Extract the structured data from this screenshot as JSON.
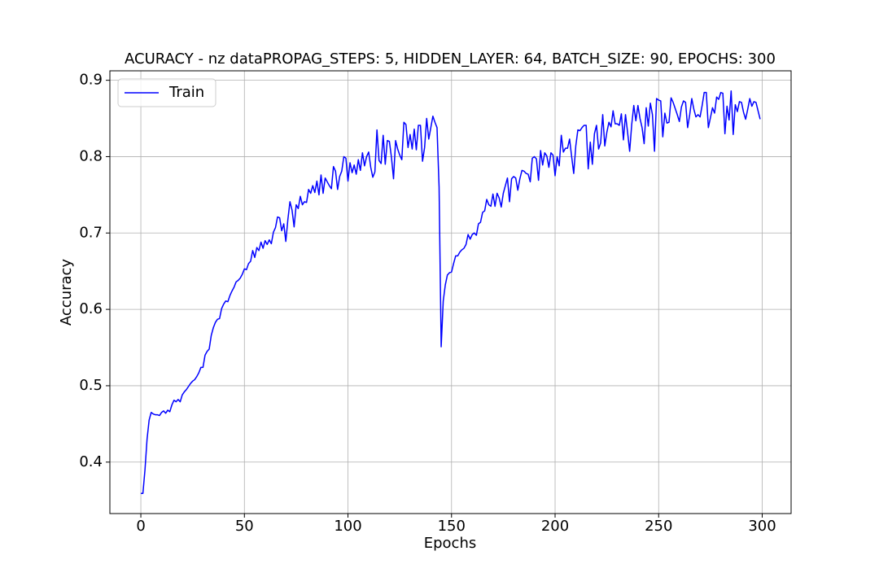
{
  "chart_data": {
    "type": "line",
    "title": "ACURACY - nz dataPROPAG_STEPS: 5, HIDDEN_LAYER: 64, BATCH_SIZE: 90, EPOCHS: 300",
    "xlabel": "Epochs",
    "ylabel": "Accuracy",
    "x": [
      0,
      1,
      2,
      3,
      4,
      5,
      6,
      7,
      8,
      9,
      10,
      11,
      12,
      13,
      14,
      15,
      16,
      17,
      18,
      19,
      20,
      21,
      22,
      23,
      24,
      25,
      26,
      27,
      28,
      29,
      30,
      31,
      32,
      33,
      34,
      35,
      36,
      37,
      38,
      39,
      40,
      41,
      42,
      43,
      44,
      45,
      46,
      47,
      48,
      49,
      50,
      51,
      52,
      53,
      54,
      55,
      56,
      57,
      58,
      59,
      60,
      61,
      62,
      63,
      64,
      65,
      66,
      67,
      68,
      69,
      70,
      71,
      72,
      73,
      74,
      75,
      76,
      77,
      78,
      79,
      80,
      81,
      82,
      83,
      84,
      85,
      86,
      87,
      88,
      89,
      90,
      91,
      92,
      93,
      94,
      95,
      96,
      97,
      98,
      99,
      100,
      101,
      102,
      103,
      104,
      105,
      106,
      107,
      108,
      109,
      110,
      111,
      112,
      113,
      114,
      115,
      116,
      117,
      118,
      119,
      120,
      121,
      122,
      123,
      124,
      125,
      126,
      127,
      128,
      129,
      130,
      131,
      132,
      133,
      134,
      135,
      136,
      137,
      138,
      139,
      140,
      141,
      142,
      143,
      144,
      145,
      146,
      147,
      148,
      149,
      150,
      151,
      152,
      153,
      154,
      155,
      156,
      157,
      158,
      159,
      160,
      161,
      162,
      163,
      164,
      165,
      166,
      167,
      168,
      169,
      170,
      171,
      172,
      173,
      174,
      175,
      176,
      177,
      178,
      179,
      180,
      181,
      182,
      183,
      184,
      185,
      186,
      187,
      188,
      189,
      190,
      191,
      192,
      193,
      194,
      195,
      196,
      197,
      198,
      199,
      200,
      201,
      202,
      203,
      204,
      205,
      206,
      207,
      208,
      209,
      210,
      211,
      212,
      213,
      214,
      215,
      216,
      217,
      218,
      219,
      220,
      221,
      222,
      223,
      224,
      225,
      226,
      227,
      228,
      229,
      230,
      231,
      232,
      233,
      234,
      235,
      236,
      237,
      238,
      239,
      240,
      241,
      242,
      243,
      244,
      245,
      246,
      247,
      248,
      249,
      250,
      251,
      252,
      253,
      254,
      255,
      256,
      257,
      258,
      259,
      260,
      261,
      262,
      263,
      264,
      265,
      266,
      267,
      268,
      269,
      270,
      271,
      272,
      273,
      274,
      275,
      276,
      277,
      278,
      279,
      280,
      281,
      282,
      283,
      284,
      285,
      286,
      287,
      288,
      289,
      290,
      291,
      292,
      293,
      294,
      295,
      296,
      297,
      298,
      299
    ],
    "series": [
      {
        "name": "Train",
        "color": "#0000ff",
        "values": [
          0.359,
          0.359,
          0.39,
          0.43,
          0.455,
          0.465,
          0.463,
          0.462,
          0.462,
          0.461,
          0.465,
          0.467,
          0.464,
          0.468,
          0.466,
          0.475,
          0.481,
          0.479,
          0.482,
          0.479,
          0.488,
          0.492,
          0.495,
          0.499,
          0.503,
          0.506,
          0.508,
          0.512,
          0.517,
          0.524,
          0.524,
          0.54,
          0.545,
          0.548,
          0.566,
          0.576,
          0.583,
          0.587,
          0.588,
          0.601,
          0.607,
          0.611,
          0.61,
          0.618,
          0.624,
          0.629,
          0.636,
          0.638,
          0.641,
          0.646,
          0.653,
          0.652,
          0.66,
          0.663,
          0.677,
          0.668,
          0.681,
          0.677,
          0.688,
          0.68,
          0.69,
          0.685,
          0.691,
          0.686,
          0.701,
          0.707,
          0.721,
          0.72,
          0.703,
          0.712,
          0.689,
          0.718,
          0.741,
          0.73,
          0.708,
          0.737,
          0.732,
          0.748,
          0.737,
          0.741,
          0.74,
          0.757,
          0.752,
          0.762,
          0.753,
          0.768,
          0.75,
          0.776,
          0.752,
          0.772,
          0.767,
          0.762,
          0.758,
          0.787,
          0.781,
          0.757,
          0.774,
          0.781,
          0.8,
          0.798,
          0.768,
          0.792,
          0.779,
          0.789,
          0.777,
          0.796,
          0.782,
          0.805,
          0.788,
          0.8,
          0.806,
          0.786,
          0.773,
          0.78,
          0.835,
          0.795,
          0.791,
          0.828,
          0.79,
          0.821,
          0.82,
          0.799,
          0.771,
          0.821,
          0.81,
          0.802,
          0.796,
          0.845,
          0.842,
          0.812,
          0.829,
          0.81,
          0.836,
          0.809,
          0.841,
          0.841,
          0.794,
          0.812,
          0.85,
          0.823,
          0.838,
          0.853,
          0.845,
          0.838,
          0.76,
          0.551,
          0.611,
          0.632,
          0.645,
          0.648,
          0.649,
          0.66,
          0.67,
          0.67,
          0.675,
          0.678,
          0.68,
          0.685,
          0.698,
          0.692,
          0.698,
          0.7,
          0.697,
          0.712,
          0.714,
          0.727,
          0.729,
          0.744,
          0.737,
          0.735,
          0.751,
          0.735,
          0.752,
          0.746,
          0.734,
          0.752,
          0.762,
          0.772,
          0.741,
          0.771,
          0.774,
          0.772,
          0.756,
          0.771,
          0.782,
          0.781,
          0.778,
          0.777,
          0.767,
          0.798,
          0.8,
          0.797,
          0.769,
          0.808,
          0.789,
          0.805,
          0.801,
          0.786,
          0.805,
          0.802,
          0.775,
          0.8,
          0.788,
          0.828,
          0.806,
          0.811,
          0.811,
          0.823,
          0.8,
          0.778,
          0.814,
          0.835,
          0.834,
          0.838,
          0.841,
          0.841,
          0.784,
          0.819,
          0.79,
          0.83,
          0.841,
          0.81,
          0.818,
          0.855,
          0.814,
          0.832,
          0.845,
          0.839,
          0.86,
          0.843,
          0.843,
          0.841,
          0.856,
          0.822,
          0.855,
          0.832,
          0.807,
          0.842,
          0.867,
          0.847,
          0.867,
          0.85,
          0.838,
          0.817,
          0.864,
          0.84,
          0.87,
          0.855,
          0.807,
          0.876,
          0.874,
          0.873,
          0.826,
          0.857,
          0.844,
          0.845,
          0.877,
          0.871,
          0.863,
          0.855,
          0.846,
          0.865,
          0.873,
          0.871,
          0.838,
          0.855,
          0.876,
          0.862,
          0.852,
          0.855,
          0.852,
          0.867,
          0.884,
          0.884,
          0.838,
          0.851,
          0.864,
          0.857,
          0.878,
          0.875,
          0.884,
          0.883,
          0.83,
          0.866,
          0.848,
          0.886,
          0.829,
          0.868,
          0.859,
          0.872,
          0.871,
          0.858,
          0.849,
          0.862,
          0.876,
          0.866,
          0.872,
          0.871,
          0.86,
          0.849
        ]
      }
    ],
    "xlim": [
      -14.95,
      313.95
    ],
    "ylim": [
      0.3326,
      0.9124
    ],
    "xticks": [
      0,
      50,
      100,
      150,
      200,
      250,
      300
    ],
    "yticks": [
      0.4,
      0.5,
      0.6,
      0.7,
      0.8,
      0.9
    ],
    "grid": true,
    "legend": "upper-left"
  }
}
